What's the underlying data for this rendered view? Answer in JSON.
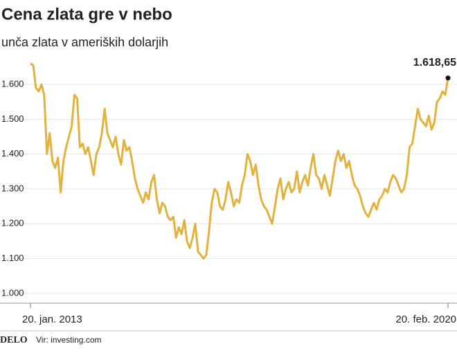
{
  "chart_data": {
    "type": "line",
    "title": "Cena zlata gre v nebo",
    "subtitle": "unča zlata v ameriških dolarjih",
    "logo": "DELO",
    "source": "Vir: investing.com",
    "color": "#e3b23c",
    "grid": true,
    "ylim": [
      950,
      1700
    ],
    "yticks": [
      {
        "value": 1000,
        "label": "1.000"
      },
      {
        "value": 1100,
        "label": "1.100"
      },
      {
        "value": 1200,
        "label": "1.200"
      },
      {
        "value": 1300,
        "label": "1.300"
      },
      {
        "value": 1400,
        "label": "1.400"
      },
      {
        "value": 1500,
        "label": "1.500"
      },
      {
        "value": 1600,
        "label": "1.600"
      }
    ],
    "categories": [
      "20. jan. 2013",
      null,
      null,
      null,
      null,
      null,
      null,
      null,
      null,
      null,
      null,
      null,
      null,
      null,
      null,
      null,
      null,
      null,
      null,
      null,
      null,
      null,
      null,
      null,
      null,
      null,
      null,
      null,
      null,
      null,
      null,
      null,
      null,
      null,
      null,
      null,
      null,
      null,
      null,
      null,
      null,
      null,
      null,
      null,
      null,
      null,
      null,
      null,
      null,
      null,
      null,
      null,
      null,
      null,
      null,
      null,
      null,
      null,
      null,
      null,
      null,
      null,
      null,
      null,
      null,
      null,
      null,
      null,
      null,
      null,
      null,
      null,
      null,
      null,
      null,
      null,
      null,
      null,
      null,
      null,
      null,
      null,
      null,
      null,
      null,
      null,
      null,
      null,
      null,
      null,
      null,
      null,
      null,
      null,
      null,
      null,
      null,
      null,
      null,
      null,
      null,
      null,
      null,
      null,
      null,
      null,
      null,
      null,
      null,
      null,
      null,
      null,
      null,
      null,
      null,
      null,
      null,
      null,
      null,
      null,
      null,
      null,
      null,
      null,
      null,
      null,
      null,
      null,
      null,
      null,
      null,
      null,
      null,
      null,
      null,
      null,
      null,
      null,
      null,
      null,
      null,
      null,
      null,
      null,
      null,
      null,
      null,
      null,
      null,
      null,
      null,
      null,
      "20. feb. 2020"
    ],
    "values": [
      1660,
      1655,
      1590,
      1580,
      1600,
      1570,
      1400,
      1460,
      1380,
      1360,
      1390,
      1290,
      1380,
      1420,
      1450,
      1480,
      1570,
      1560,
      1420,
      1430,
      1400,
      1420,
      1380,
      1340,
      1400,
      1420,
      1460,
      1530,
      1460,
      1440,
      1420,
      1450,
      1400,
      1370,
      1440,
      1410,
      1420,
      1380,
      1330,
      1300,
      1280,
      1260,
      1290,
      1270,
      1320,
      1340,
      1270,
      1230,
      1260,
      1250,
      1220,
      1210,
      1220,
      1160,
      1190,
      1170,
      1210,
      1150,
      1130,
      1160,
      1200,
      1120,
      1110,
      1100,
      1110,
      1180,
      1260,
      1300,
      1290,
      1250,
      1240,
      1270,
      1320,
      1290,
      1250,
      1270,
      1260,
      1310,
      1340,
      1400,
      1380,
      1340,
      1370,
      1310,
      1270,
      1250,
      1240,
      1220,
      1200,
      1250,
      1300,
      1330,
      1270,
      1300,
      1320,
      1290,
      1300,
      1350,
      1290,
      1320,
      1340,
      1310,
      1360,
      1400,
      1340,
      1330,
      1300,
      1340,
      1310,
      1280,
      1330,
      1380,
      1410,
      1380,
      1400,
      1360,
      1380,
      1340,
      1310,
      1300,
      1280,
      1250,
      1230,
      1220,
      1240,
      1260,
      1240,
      1270,
      1280,
      1300,
      1290,
      1320,
      1340,
      1330,
      1310,
      1290,
      1300,
      1340,
      1420,
      1430,
      1480,
      1530,
      1500,
      1490,
      1480,
      1510,
      1470,
      1490,
      1550,
      1560,
      1580,
      1570,
      1618.65
    ],
    "value_labels": [
      null,
      null,
      null,
      null,
      null,
      null,
      null,
      null,
      null,
      null,
      null,
      null,
      null,
      null,
      null,
      null,
      null,
      null,
      null,
      null,
      null,
      null,
      null,
      null,
      null,
      null,
      null,
      null,
      null,
      null,
      null,
      null,
      null,
      null,
      null,
      null,
      null,
      null,
      null,
      null,
      null,
      null,
      null,
      null,
      null,
      null,
      null,
      null,
      null,
      null,
      null,
      null,
      null,
      null,
      null,
      null,
      null,
      null,
      null,
      null,
      null,
      null,
      null,
      null,
      null,
      null,
      null,
      null,
      null,
      null,
      null,
      null,
      null,
      null,
      null,
      null,
      null,
      null,
      null,
      null,
      null,
      null,
      null,
      null,
      null,
      null,
      null,
      null,
      null,
      null,
      null,
      null,
      null,
      null,
      null,
      null,
      null,
      null,
      null,
      null,
      null,
      null,
      null,
      null,
      null,
      null,
      null,
      null,
      null,
      null,
      null,
      null,
      null,
      null,
      null,
      null,
      null,
      null,
      null,
      null,
      null,
      null,
      null,
      null,
      null,
      null,
      null,
      null,
      null,
      null,
      null,
      null,
      null,
      null,
      null,
      null,
      null,
      null,
      null,
      null,
      null,
      null,
      null,
      null,
      null,
      null,
      null,
      null,
      null,
      null,
      null,
      null,
      "1.618,65"
    ]
  }
}
